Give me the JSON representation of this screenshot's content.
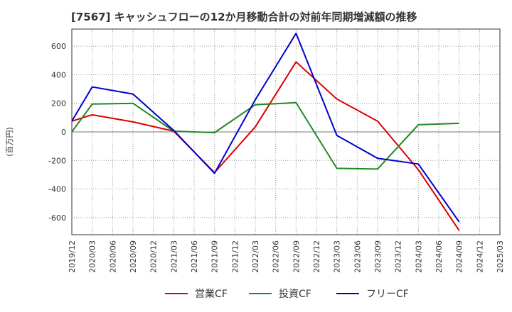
{
  "chart_data": {
    "type": "line",
    "title": "[7567]  キャッシュフローの12か月移動合計の対前年同期増減額の推移",
    "ylabel": "(百万円)",
    "xlabel": "",
    "ylim": [
      -720,
      720
    ],
    "yticks": [
      -600,
      -400,
      -200,
      0,
      200,
      400,
      600
    ],
    "grid": true,
    "legend_position": "bottom",
    "x": [
      "2019/12",
      "2020/03",
      "2020/06",
      "2020/09",
      "2020/12",
      "2021/03",
      "2021/06",
      "2021/09",
      "2021/12",
      "2022/03",
      "2022/06",
      "2022/09",
      "2022/12",
      "2023/03",
      "2023/06",
      "2023/09",
      "2023/12",
      "2024/03",
      "2024/06",
      "2024/09",
      "2024/12",
      "2025/03"
    ],
    "series": [
      {
        "name": "営業CF",
        "color": "#dd0000",
        "values": [
          75,
          120,
          null,
          70,
          null,
          5,
          null,
          -285,
          null,
          35,
          null,
          490,
          null,
          230,
          null,
          75,
          null,
          -265,
          null,
          -690,
          null,
          null
        ]
      },
      {
        "name": "投資CF",
        "color": "#228822",
        "values": [
          0,
          195,
          null,
          200,
          null,
          5,
          null,
          -5,
          null,
          190,
          null,
          205,
          null,
          -255,
          null,
          -260,
          null,
          50,
          null,
          60,
          null,
          null
        ]
      },
      {
        "name": "フリーCF",
        "color": "#0000cc",
        "values": [
          75,
          315,
          null,
          265,
          null,
          10,
          null,
          -290,
          null,
          225,
          null,
          690,
          null,
          -25,
          null,
          -185,
          null,
          -225,
          null,
          -630,
          null,
          null
        ]
      }
    ]
  }
}
